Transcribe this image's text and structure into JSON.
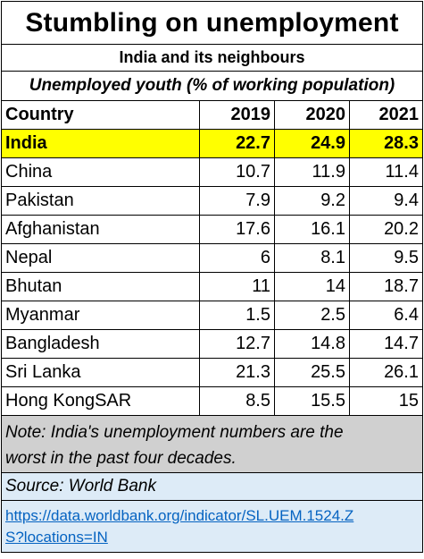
{
  "title": "Stumbling on unemployment",
  "subtitle": "India and its neighbours",
  "caption": "Unemployed youth (% of working population)",
  "table": {
    "headers": [
      "Country",
      "2019",
      "2020",
      "2021"
    ],
    "rows": [
      {
        "country": "India",
        "y2019": "22.7",
        "y2020": "24.9",
        "y2021": "28.3",
        "highlight": true
      },
      {
        "country": "China",
        "y2019": "10.7",
        "y2020": "11.9",
        "y2021": "11.4"
      },
      {
        "country": "Pakistan",
        "y2019": "7.9",
        "y2020": "9.2",
        "y2021": "9.4"
      },
      {
        "country": "Afghanistan",
        "y2019": "17.6",
        "y2020": "16.1",
        "y2021": "20.2"
      },
      {
        "country": "Nepal",
        "y2019": "6",
        "y2020": "8.1",
        "y2021": "9.5"
      },
      {
        "country": "Bhutan",
        "y2019": "11",
        "y2020": "14",
        "y2021": "18.7"
      },
      {
        "country": "Myanmar",
        "y2019": "1.5",
        "y2020": "2.5",
        "y2021": "6.4"
      },
      {
        "country": "Bangladesh",
        "y2019": "12.7",
        "y2020": "14.8",
        "y2021": "14.7"
      },
      {
        "country": "Sri Lanka",
        "y2019": "21.3",
        "y2020": "25.5",
        "y2021": "26.1"
      },
      {
        "country": "Hong KongSAR",
        "y2019": "8.5",
        "y2020": "15.5",
        "y2021": "15"
      }
    ]
  },
  "note": {
    "line1": "Note: India's unemployment numbers are the",
    "line2": "worst  in the past four decades."
  },
  "source": "Source: World Bank",
  "link": {
    "line1": "https://data.worldbank.org/indicator/SL.UEM.1524.Z",
    "line2": "S?locations=IN"
  },
  "colors": {
    "highlight": "#ffff00",
    "note_bg": "#d0d0d0",
    "source_bg": "#ddebf7",
    "link": "#0563c1"
  }
}
